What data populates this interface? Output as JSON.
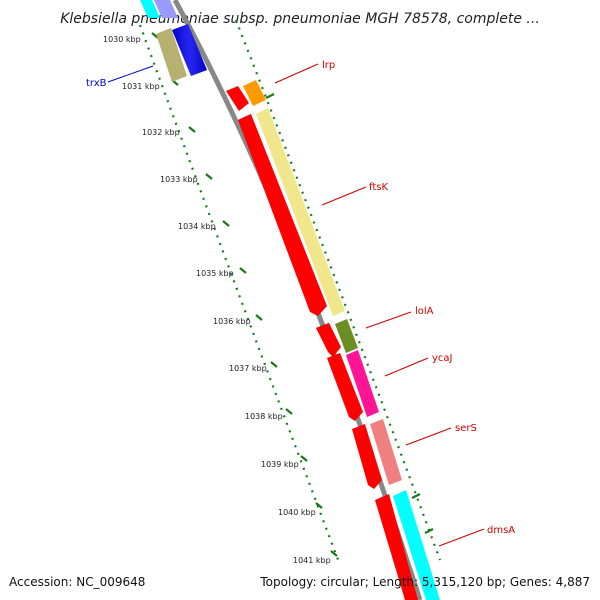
{
  "title": "Klebsiella pneumoniae subsp. pneumoniae MGH 78578, complete ...",
  "footer": {
    "accession": "Accession: NC_009648",
    "topology": "Topology: circular; Length: 5,315,120 bp; Genes: 4,887"
  },
  "ticks": [
    "1030 kbp",
    "1031 kbp",
    "1032 kbp",
    "1033 kbp",
    "1034 kbp",
    "1035 kbp",
    "1036 kbp",
    "1037 kbp",
    "1038 kbp",
    "1039 kbp",
    "1040 kbp",
    "1041 kbp"
  ],
  "gene_labels": [
    {
      "name": "trxB",
      "color": "#0000cc"
    },
    {
      "name": "lrp",
      "color": "#cc0000"
    },
    {
      "name": "ftsK",
      "color": "#cc0000"
    },
    {
      "name": "lolA",
      "color": "#cc0000"
    },
    {
      "name": "ycaJ",
      "color": "#cc0000"
    },
    {
      "name": "serS",
      "color": "#cc0000"
    },
    {
      "name": "dmsA",
      "color": "#cc0000"
    }
  ],
  "colors": {
    "backbone": "#888888",
    "tick": "#1a7a1a",
    "cds": "#ff0000",
    "trxB": "#0000ee",
    "trxB_outer": "#b8b070",
    "lrp": "#ff9900",
    "ftsK": "#f0e68c",
    "lolA": "#6b8e23",
    "ycaJ": "#ff1493",
    "serS": "#f08080",
    "dmsA": "#00ffff"
  }
}
